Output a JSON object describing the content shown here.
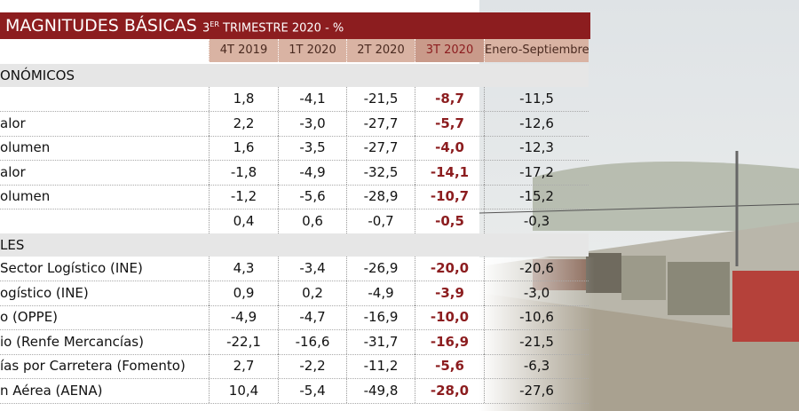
{
  "header": {
    "title": "MAGNITUDES BÁSICAS",
    "subtitle": {
      "number": "3",
      "sup": "ER",
      "text": "TRIMESTRE 2020 - %"
    }
  },
  "table": {
    "columns": [
      "4T 2019",
      "1T 2020",
      "2T 2020",
      "3T 2020",
      "Enero-Septiembre"
    ],
    "sections": [
      {
        "title": "ONÓMICOS",
        "rows": [
          {
            "cells": [
              "1,8",
              "-4,1",
              "-21,5",
              "-8,7",
              "-11,5"
            ]
          },
          {
            "label": "alor",
            "cells": [
              "2,2",
              "-3,0",
              "-27,7",
              "-5,7",
              "-12,6"
            ]
          },
          {
            "label": "olumen",
            "cells": [
              "1,6",
              "-3,5",
              "-27,7",
              "-4,0",
              "-12,3"
            ]
          },
          {
            "label": "alor",
            "cells": [
              "-1,8",
              "-4,9",
              "-32,5",
              "-14,1",
              "-17,2"
            ]
          },
          {
            "label": "olumen",
            "cells": [
              "-1,2",
              "-5,6",
              "-28,9",
              "-10,7",
              "-15,2"
            ]
          },
          {
            "cells": [
              "0,4",
              "0,6",
              "-0,7",
              "-0,5",
              "-0,3"
            ]
          }
        ]
      },
      {
        "title": "LES",
        "rows": [
          {
            "label": "Sector Logístico (INE)",
            "cells": [
              "4,3",
              "-3,4",
              "-26,9",
              "-20,0",
              "-20,6"
            ]
          },
          {
            "label": "ogístico (INE)",
            "cells": [
              "0,9",
              "0,2",
              "-4,9",
              "-3,9",
              "-3,0"
            ]
          },
          {
            "label": "o (OPPE)",
            "cells": [
              "-4,9",
              "-4,7",
              "-16,9",
              "-10,0",
              "-10,6"
            ]
          },
          {
            "label": "io (Renfe Mercancías)",
            "cells": [
              "-22,1",
              "-16,6",
              "-31,7",
              "-16,9",
              "-21,5"
            ]
          },
          {
            "label": "ías por Carretera (Fomento)",
            "cells": [
              "2,7",
              "-2,2",
              "-11,2",
              "-5,6",
              "-6,3"
            ]
          },
          {
            "label": "n Aérea (AENA)",
            "cells": [
              "10,4",
              "-5,4",
              "-49,8",
              "-28,0",
              "-27,6"
            ]
          }
        ]
      }
    ]
  }
}
